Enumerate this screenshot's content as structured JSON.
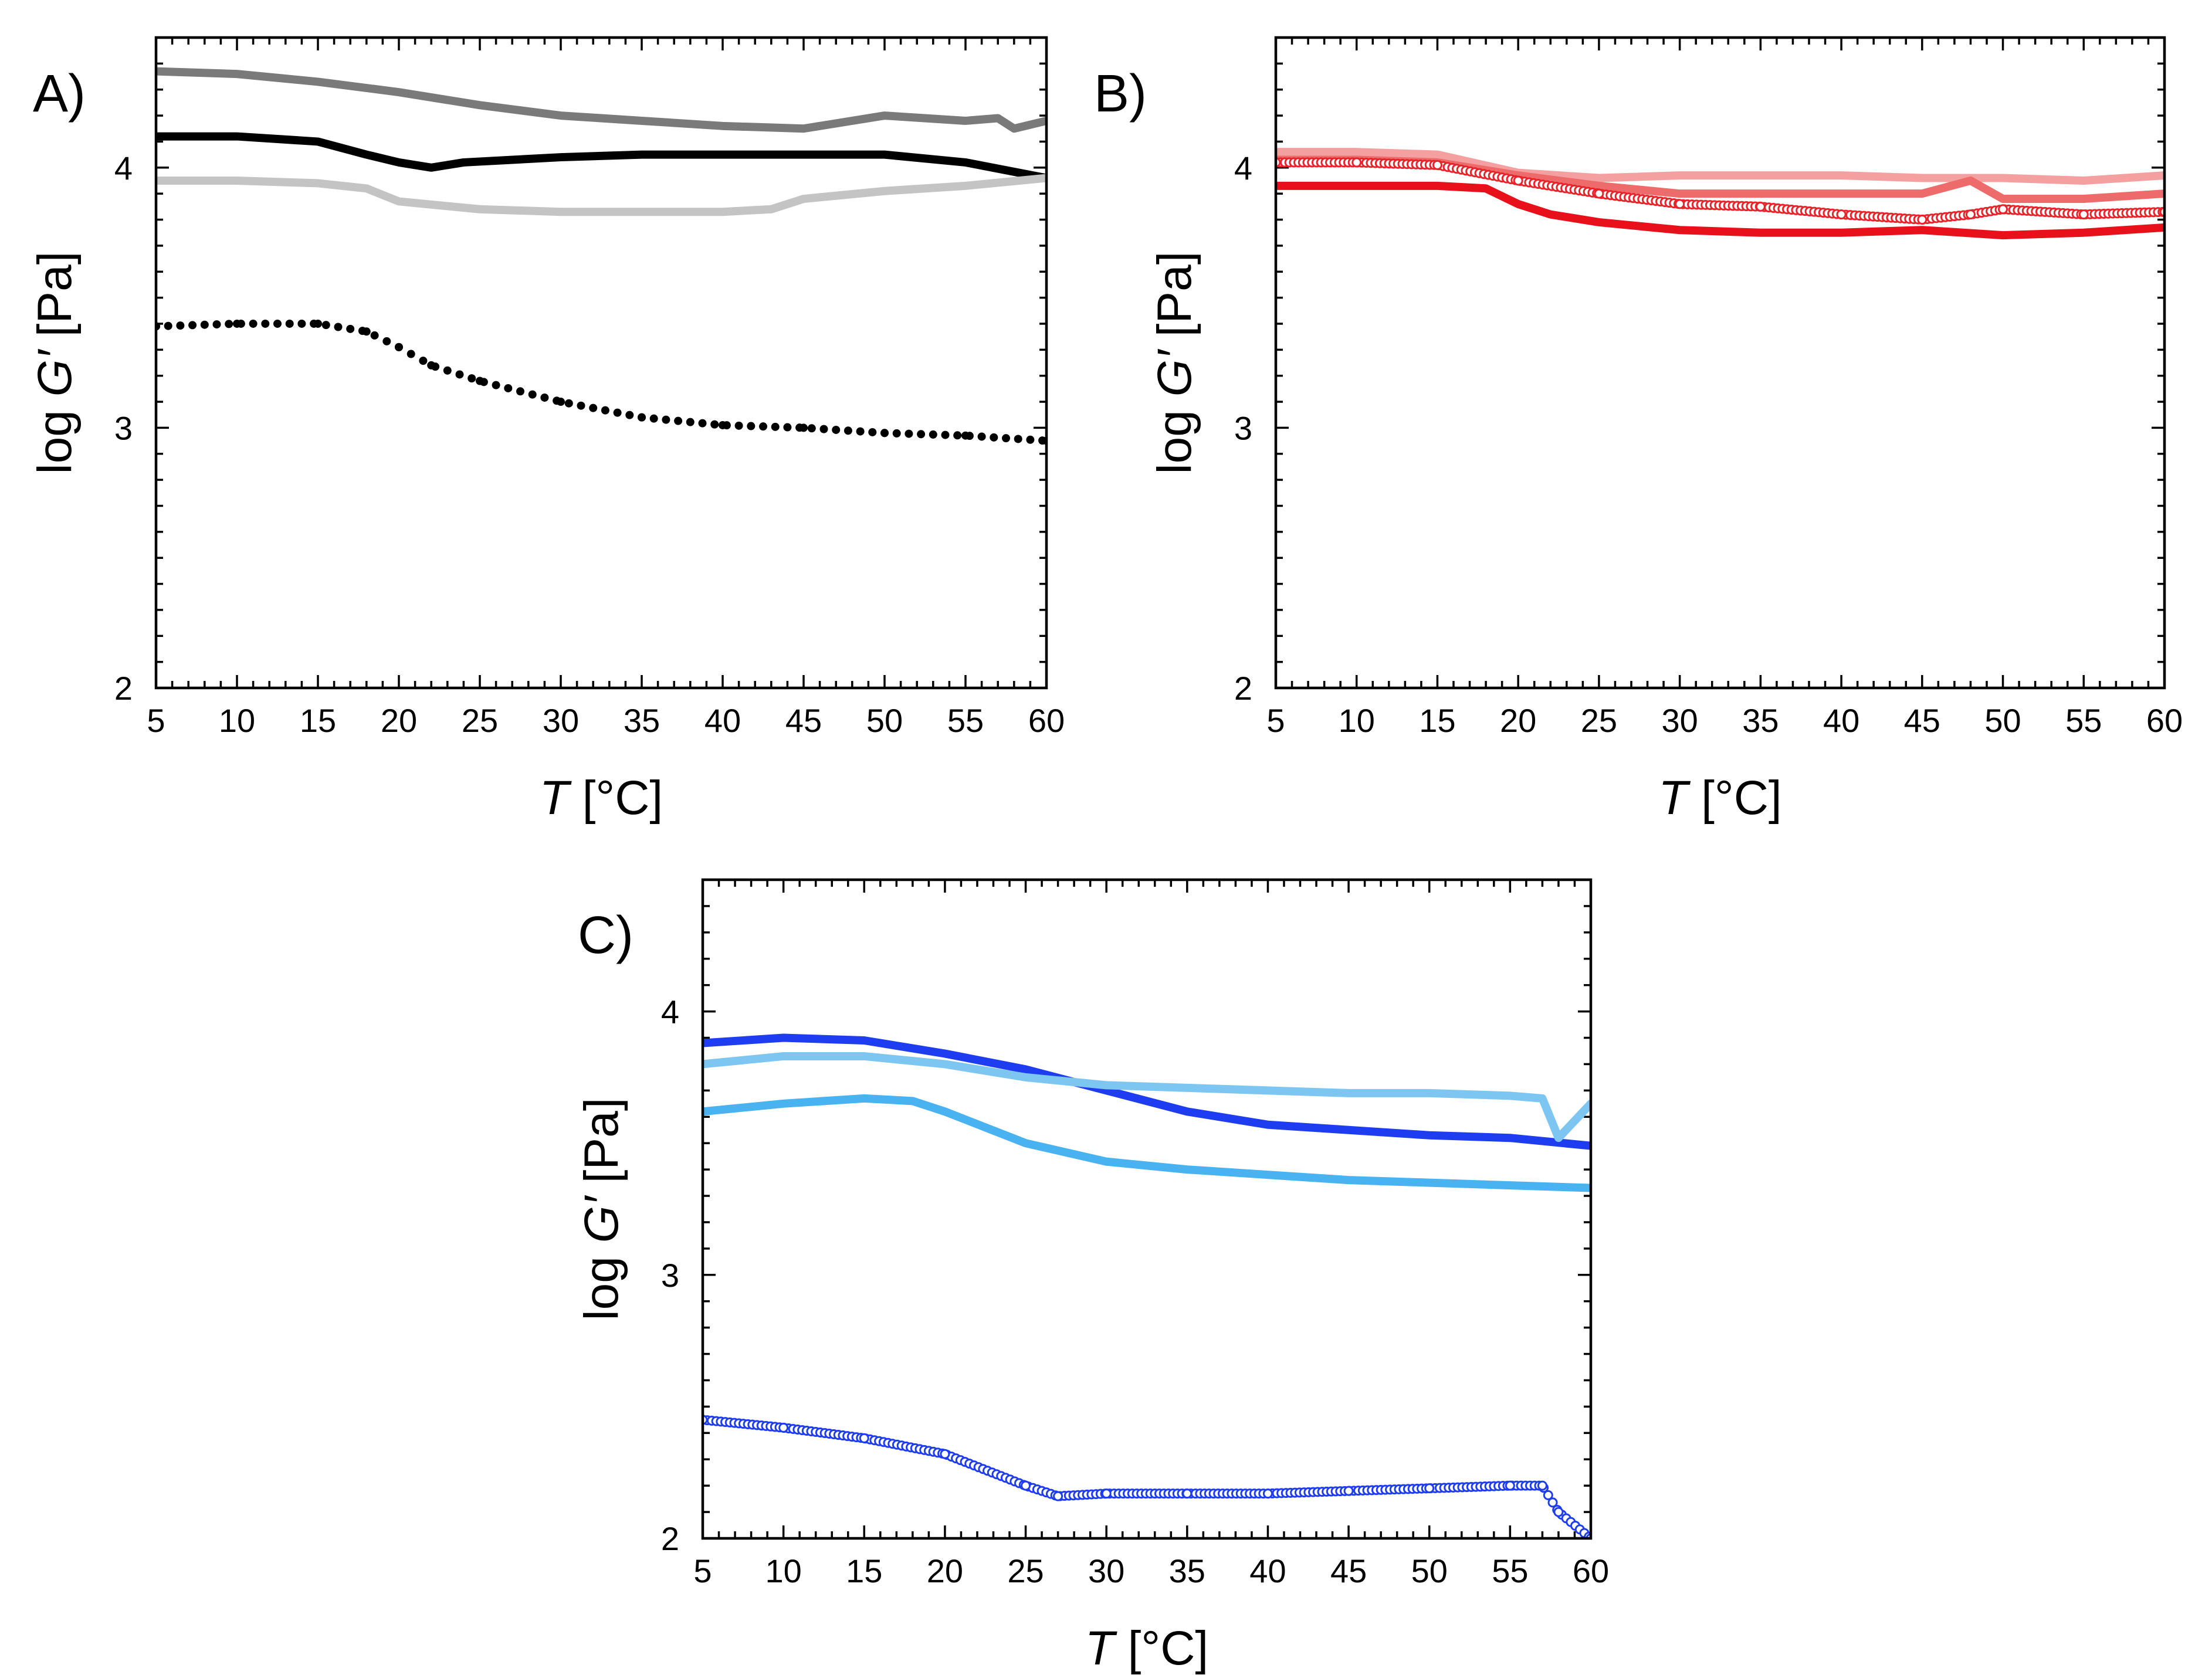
{
  "panel_labels": [
    "A)",
    "B)",
    "C)"
  ],
  "axis_titles": {
    "x_italic": "T",
    "x_rest": " [°C]",
    "y_prefix": "log ",
    "y_italic": "G′",
    "y_suffix": " [Pa]"
  },
  "chart_data": [
    {
      "type": "line",
      "panel": "A)",
      "xlabel": "T [°C]",
      "ylabel": "log G′ [Pa]",
      "xlim": [
        5,
        60
      ],
      "ylim": [
        2,
        4.5
      ],
      "xticks": [
        5,
        10,
        15,
        20,
        25,
        30,
        35,
        40,
        45,
        50,
        55,
        60
      ],
      "yticks": [
        2,
        3,
        4
      ],
      "series": [
        {
          "color": "#7a7a7a",
          "style": "solid",
          "x": [
            5,
            10,
            15,
            20,
            25,
            30,
            35,
            40,
            45,
            50,
            55,
            57,
            58,
            60
          ],
          "y": [
            4.37,
            4.36,
            4.33,
            4.29,
            4.24,
            4.2,
            4.18,
            4.16,
            4.15,
            4.2,
            4.18,
            4.19,
            4.15,
            4.18
          ]
        },
        {
          "color": "#000000",
          "style": "solid",
          "x": [
            5,
            10,
            15,
            18,
            20,
            22,
            24,
            30,
            35,
            40,
            45,
            50,
            55,
            60
          ],
          "y": [
            4.12,
            4.12,
            4.1,
            4.05,
            4.02,
            4.0,
            4.02,
            4.04,
            4.05,
            4.05,
            4.05,
            4.05,
            4.02,
            3.96
          ]
        },
        {
          "color": "#c4c4c4",
          "style": "solid",
          "x": [
            5,
            10,
            15,
            18,
            20,
            25,
            30,
            35,
            40,
            43,
            45,
            50,
            55,
            60
          ],
          "y": [
            3.95,
            3.95,
            3.94,
            3.92,
            3.87,
            3.84,
            3.83,
            3.83,
            3.83,
            3.84,
            3.88,
            3.91,
            3.93,
            3.96
          ]
        },
        {
          "color": "#000000",
          "style": "dotted",
          "x": [
            5,
            10,
            15,
            18,
            20,
            22,
            25,
            30,
            35,
            40,
            45,
            50,
            55,
            60
          ],
          "y": [
            3.39,
            3.4,
            3.4,
            3.37,
            3.31,
            3.24,
            3.18,
            3.1,
            3.04,
            3.01,
            3.0,
            2.98,
            2.97,
            2.95
          ]
        }
      ]
    },
    {
      "type": "line",
      "panel": "B)",
      "xlabel": "T [°C]",
      "ylabel": "log G′ [Pa]",
      "xlim": [
        5,
        60
      ],
      "ylim": [
        2,
        4.5
      ],
      "xticks": [
        5,
        10,
        15,
        20,
        25,
        30,
        35,
        40,
        45,
        50,
        55,
        60
      ],
      "yticks": [
        2,
        3,
        4
      ],
      "series": [
        {
          "color": "#f4a0a0",
          "style": "solid",
          "x": [
            5,
            10,
            15,
            20,
            25,
            30,
            35,
            40,
            45,
            50,
            55,
            60
          ],
          "y": [
            4.06,
            4.06,
            4.05,
            3.98,
            3.96,
            3.97,
            3.97,
            3.97,
            3.96,
            3.96,
            3.95,
            3.97
          ]
        },
        {
          "color": "#ee6b6b",
          "style": "solid",
          "x": [
            5,
            10,
            15,
            20,
            25,
            30,
            35,
            40,
            45,
            48,
            50,
            55,
            60
          ],
          "y": [
            4.03,
            4.03,
            4.02,
            3.97,
            3.93,
            3.9,
            3.9,
            3.9,
            3.9,
            3.95,
            3.88,
            3.88,
            3.9
          ]
        },
        {
          "color": "#e8232a",
          "style": "markers",
          "x": [
            5,
            10,
            15,
            20,
            25,
            30,
            35,
            40,
            45,
            48,
            50,
            55,
            60
          ],
          "y": [
            4.02,
            4.02,
            4.01,
            3.95,
            3.9,
            3.86,
            3.85,
            3.82,
            3.8,
            3.82,
            3.84,
            3.82,
            3.83
          ]
        },
        {
          "color": "#e8101a",
          "style": "solid",
          "x": [
            5,
            10,
            15,
            18,
            20,
            22,
            25,
            30,
            35,
            40,
            45,
            50,
            55,
            60
          ],
          "y": [
            3.93,
            3.93,
            3.93,
            3.92,
            3.86,
            3.82,
            3.79,
            3.76,
            3.75,
            3.75,
            3.76,
            3.74,
            3.75,
            3.77
          ]
        }
      ]
    },
    {
      "type": "line",
      "panel": "C)",
      "xlabel": "T [°C]",
      "ylabel": "log G′ [Pa]",
      "xlim": [
        5,
        60
      ],
      "ylim": [
        2,
        4.5
      ],
      "xticks": [
        5,
        10,
        15,
        20,
        25,
        30,
        35,
        40,
        45,
        50,
        55,
        60
      ],
      "yticks": [
        2,
        3,
        4
      ],
      "series": [
        {
          "color": "#1e3cf0",
          "style": "solid",
          "x": [
            5,
            10,
            15,
            20,
            25,
            30,
            35,
            40,
            45,
            50,
            55,
            60
          ],
          "y": [
            3.88,
            3.9,
            3.89,
            3.84,
            3.78,
            3.7,
            3.62,
            3.57,
            3.55,
            3.53,
            3.52,
            3.49
          ]
        },
        {
          "color": "#7ec6f2",
          "style": "solid",
          "x": [
            5,
            10,
            15,
            20,
            25,
            30,
            35,
            40,
            45,
            50,
            55,
            57,
            58,
            60
          ],
          "y": [
            3.8,
            3.83,
            3.83,
            3.8,
            3.75,
            3.72,
            3.71,
            3.7,
            3.69,
            3.69,
            3.68,
            3.67,
            3.52,
            3.65
          ]
        },
        {
          "color": "#48b3f0",
          "style": "solid",
          "x": [
            5,
            10,
            15,
            18,
            20,
            25,
            30,
            35,
            40,
            45,
            50,
            55,
            60
          ],
          "y": [
            3.62,
            3.65,
            3.67,
            3.66,
            3.62,
            3.5,
            3.43,
            3.4,
            3.38,
            3.36,
            3.35,
            3.34,
            3.33
          ]
        },
        {
          "color": "#1e3cf0",
          "style": "markers",
          "x": [
            5,
            10,
            15,
            20,
            25,
            27,
            30,
            35,
            40,
            45,
            50,
            55,
            57,
            58,
            60
          ],
          "y": [
            2.45,
            2.42,
            2.38,
            2.32,
            2.2,
            2.16,
            2.17,
            2.17,
            2.17,
            2.18,
            2.19,
            2.2,
            2.2,
            2.1,
            2.0
          ]
        }
      ]
    }
  ]
}
